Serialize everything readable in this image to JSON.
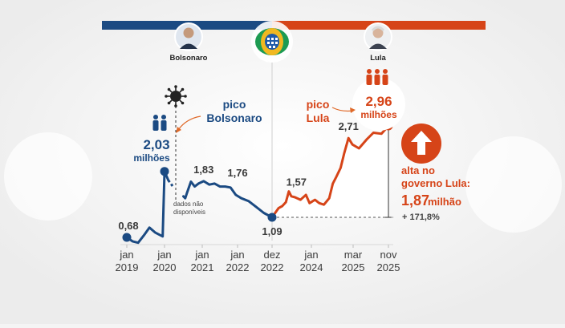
{
  "header": {
    "left_name": "Bolsonaro",
    "right_name": "Lula"
  },
  "colors": {
    "bolsonaro": "#1b4a82",
    "lula": "#d64418",
    "axis_text": "#3c3c3c",
    "background": "#f4f4f4"
  },
  "icons": {
    "left_portrait": "bolsonaro-portrait",
    "right_portrait": "lula-portrait",
    "center_logo": "inss-logo",
    "virus": "virus-icon",
    "people_blue": "people-icon",
    "people_orange": "people-icon",
    "arrow": "arrow-up-icon"
  },
  "annotations": {
    "pico_bolsonaro_1": "pico",
    "pico_bolsonaro_2": "Bolsonaro",
    "pico_bolsonaro_value": "2,03",
    "pico_bolsonaro_unit": "milhões",
    "pico_lula_1": "pico",
    "pico_lula_2": "Lula",
    "pico_lula_value": "2,96",
    "pico_lula_unit": "milhões",
    "dados_1": "dados não",
    "dados_2": "disponíveis",
    "alta_1": "alta no",
    "alta_2": "governo Lula:",
    "alta_value": "1,87",
    "alta_unit": "milhão",
    "alta_pct": "+ 171,8%"
  },
  "chart_data": {
    "type": "line",
    "title": "",
    "xlabel": "",
    "ylabel": "",
    "x_ticks": [
      {
        "line1": "jan",
        "line2": "2019"
      },
      {
        "line1": "jan",
        "line2": "2020"
      },
      {
        "line1": "jan",
        "line2": "2021"
      },
      {
        "line1": "jan",
        "line2": "2022"
      },
      {
        "line1": "dez",
        "line2": "2022"
      },
      {
        "line1": "jan",
        "line2": "2024"
      },
      {
        "line1": "mar",
        "line2": "2025"
      },
      {
        "line1": "nov",
        "line2": "2025"
      }
    ],
    "ylim": [
      0.4,
      3.4
    ],
    "data_labels": [
      {
        "label": "0,68",
        "x": 2019.0,
        "y": 0.68
      },
      {
        "label": "1,83",
        "x": 2021.04,
        "y": 1.83
      },
      {
        "label": "1,76",
        "x": 2022.0,
        "y": 1.76
      },
      {
        "label": "1,09",
        "x": 2022.92,
        "y": 1.09
      },
      {
        "label": "1,57",
        "x": 2023.5,
        "y": 1.57
      },
      {
        "label": "2,71",
        "x": 2025.04,
        "y": 2.71
      }
    ],
    "series": [
      {
        "name": "Bolsonaro",
        "color": "#1b4a82",
        "points": [
          [
            2019.0,
            0.68
          ],
          [
            2019.15,
            0.6
          ],
          [
            2019.3,
            0.57
          ],
          [
            2019.45,
            0.72
          ],
          [
            2019.6,
            0.88
          ],
          [
            2019.75,
            0.78
          ],
          [
            2019.95,
            0.7
          ],
          [
            2020.0,
            2.03
          ],
          [
            2020.1,
            1.85
          ]
        ],
        "gap_points": [
          [
            2020.1,
            1.85
          ],
          [
            2020.25,
            1.69
          ]
        ],
        "continue_points": [
          [
            2020.5,
            1.52
          ],
          [
            2020.55,
            1.48
          ],
          [
            2020.6,
            1.6
          ],
          [
            2020.7,
            1.82
          ],
          [
            2020.8,
            1.72
          ],
          [
            2020.9,
            1.78
          ],
          [
            2021.04,
            1.83
          ],
          [
            2021.2,
            1.76
          ],
          [
            2021.35,
            1.78
          ],
          [
            2021.5,
            1.72
          ],
          [
            2021.65,
            1.72
          ],
          [
            2021.8,
            1.7
          ],
          [
            2021.95,
            1.55
          ],
          [
            2022.1,
            1.48
          ],
          [
            2022.3,
            1.42
          ],
          [
            2022.5,
            1.3
          ],
          [
            2022.7,
            1.18
          ],
          [
            2022.92,
            1.09
          ]
        ]
      },
      {
        "name": "Lula",
        "color": "#d64418",
        "points": [
          [
            2022.92,
            1.09
          ],
          [
            2023.1,
            1.28
          ],
          [
            2023.2,
            1.32
          ],
          [
            2023.3,
            1.4
          ],
          [
            2023.38,
            1.62
          ],
          [
            2023.45,
            1.52
          ],
          [
            2023.55,
            1.5
          ],
          [
            2023.7,
            1.45
          ],
          [
            2023.85,
            1.55
          ],
          [
            2023.95,
            1.38
          ],
          [
            2024.1,
            1.45
          ],
          [
            2024.22,
            1.38
          ],
          [
            2024.35,
            1.35
          ],
          [
            2024.5,
            1.48
          ],
          [
            2024.6,
            1.78
          ],
          [
            2024.7,
            1.92
          ],
          [
            2024.82,
            2.1
          ],
          [
            2024.92,
            2.4
          ],
          [
            2025.04,
            2.71
          ],
          [
            2025.15,
            2.58
          ],
          [
            2025.28,
            2.5
          ],
          [
            2025.42,
            2.68
          ],
          [
            2025.55,
            2.82
          ],
          [
            2025.7,
            2.8
          ],
          [
            2025.83,
            2.96
          ]
        ]
      }
    ]
  }
}
